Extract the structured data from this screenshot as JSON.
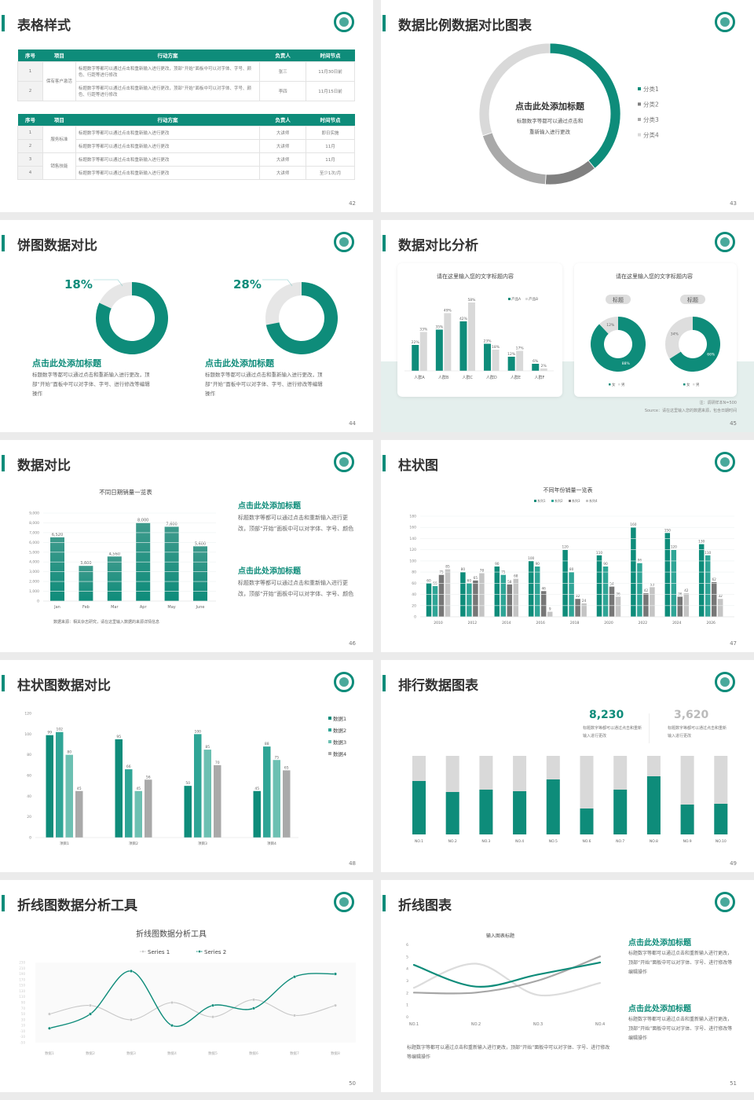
{
  "colors": {
    "accent": "#0e8c7a",
    "gray_dark": "#808080",
    "gray_mid": "#a9a9a9",
    "gray_light": "#d9d9d9"
  },
  "logo": {
    "icon": "school-seal-icon"
  },
  "s42": {
    "title": "表格样式",
    "page": "42",
    "tables": [
      {
        "header": [
          "序号",
          "项目",
          "行动方案",
          "负责人",
          "时间节点"
        ],
        "groups": [
          {
            "item": "保有客户激活",
            "rows": [
              {
                "no": "1",
                "plan": "标题数字等都可以通过点击和重新输入进行更改，顶部“开始”面板中可以对字体、字号、颜色、行距等进行修改",
                "owner": "张三",
                "time": "11月30日前"
              },
              {
                "no": "2",
                "plan": "标题数字等都可以通过点击和重新输入进行更改，顶部“开始”面板中可以对字体、字号、颜色、行距等进行修改",
                "owner": "李四",
                "time": "11月15日前"
              }
            ]
          }
        ]
      },
      {
        "header": [
          "序号",
          "项目",
          "行动方案",
          "负责人",
          "时间节点"
        ],
        "groups": [
          {
            "item": "服务标准",
            "rows": [
              {
                "no": "1",
                "plan": "标题数字等都可以通过点击和重新输入进行更改",
                "owner": "大讲师",
                "time": "即日实施"
              },
              {
                "no": "2",
                "plan": "标题数字等都可以通过点击和重新输入进行更改",
                "owner": "大讲师",
                "time": "11月"
              }
            ]
          },
          {
            "item": "销售技能",
            "rows": [
              {
                "no": "3",
                "plan": "标题数字等都可以通过点击和重新输入进行更改",
                "owner": "大讲师",
                "time": "11月"
              },
              {
                "no": "4",
                "plan": "标题数字等都可以通过点击和重新输入进行更改",
                "owner": "大讲师",
                "time": "至少1次/月"
              }
            ]
          }
        ]
      }
    ]
  },
  "s43": {
    "title": "数据比例数据对比图表",
    "page": "43",
    "center_title": "点击此处添加标题",
    "center_line1": "标题数字等都可以通过点击和",
    "center_line2": "重新输入进行更改"
  },
  "s44": {
    "title": "饼图数据对比",
    "page": "44",
    "items": [
      {
        "heading": "点击此处添加标题",
        "body": "标题数字等都可以通过点击和重新输入进行更改，顶部“开始”面板中可以对字体、字号、进行修改等编辑操作"
      },
      {
        "heading": "点击此处添加标题",
        "body": "标题数字等都可以通过点击和重新输入进行更改，顶部“开始”面板中可以对字体、字号、进行修改等编辑操作"
      }
    ]
  },
  "s45": {
    "title": "数据对比分析",
    "page": "45",
    "note": "注：调研样本N=500",
    "source": "Source：请在这里输入您的数据来源，包含日期时间"
  },
  "s46": {
    "title": "数据对比",
    "page": "46",
    "source": "数据来源：相关杂志研究，请在这里输入数据的来源详情信息",
    "items": [
      {
        "heading": "点击此处添加标题",
        "body": "标题数字等都可以通过点击和重新输入进行更改，顶部“开始”面板中可以对字体、字号、颜色"
      },
      {
        "heading": "点击此处添加标题",
        "body": "标题数字等都可以通过点击和重新输入进行更改，顶部“开始”面板中可以对字体、字号、颜色"
      }
    ]
  },
  "s47": {
    "title": "柱状图",
    "page": "47"
  },
  "s48": {
    "title": "柱状图数据对比",
    "page": "48"
  },
  "s49": {
    "title": "排行数据图表",
    "page": "49",
    "stats": [
      {
        "value": "8,230",
        "desc": "标题数字等都可以通过点击和重新输入进行更改"
      },
      {
        "value": "3,620",
        "desc": "标题数字等都可以通过点击和重新输入进行更改"
      }
    ]
  },
  "s50": {
    "title": "折线图数据分析工具",
    "page": "50"
  },
  "s51": {
    "title": "折线图表",
    "page": "51",
    "caption": "标题数字等都可以通过点击和重新输入进行更改，顶部“开始”面板中可以对字体、字号、进行修改等编辑操作",
    "items": [
      {
        "heading": "点击此处添加标题",
        "body": "标题数字等都可以通过点击和重新输入进行更改，顶部“开始”面板中可以对字体、字号、进行修改等编辑操作"
      },
      {
        "heading": "点击此处添加标题",
        "body": "标题数字等都可以通过点击和重新输入进行更改，顶部“开始”面板中可以对字体、字号、进行修改等编辑操作"
      }
    ]
  },
  "chart_data": [
    {
      "id": "s43",
      "type": "pie",
      "donut": true,
      "categories": [
        "分类1",
        "分类2",
        "分类3",
        "分类4"
      ],
      "values": [
        39,
        12,
        19,
        30
      ],
      "legend": "right"
    },
    {
      "id": "s44a",
      "type": "pie",
      "donut": true,
      "label": "18%",
      "values": [
        18,
        82
      ]
    },
    {
      "id": "s44b",
      "type": "pie",
      "donut": true,
      "label": "28%",
      "values": [
        28,
        72
      ]
    },
    {
      "id": "s45bar",
      "type": "bar",
      "title": "请在这里输入您的文字标题内容",
      "categories": [
        "人群A",
        "人群B",
        "人群C",
        "人群D",
        "人群E",
        "人群F"
      ],
      "series": [
        {
          "name": "产品A",
          "values": [
            22,
            35,
            42,
            23,
            12,
            6
          ],
          "labels": [
            "22%",
            "35%",
            "42%",
            "23%",
            "12%",
            "6%"
          ]
        },
        {
          "name": "产品B",
          "values": [
            33,
            49,
            58,
            18,
            17,
            2
          ],
          "labels": [
            "33%",
            "49%",
            "58%",
            "18%",
            "17%",
            "2%"
          ]
        }
      ],
      "legend": "top-right"
    },
    {
      "id": "s45pie",
      "type": "pie",
      "donut": true,
      "title": "请在这里输入您的文字标题内容",
      "charts": [
        {
          "tag": "标题",
          "categories": [
            "女",
            "男"
          ],
          "values": [
            88,
            12
          ],
          "labels": [
            "88%",
            "12%"
          ]
        },
        {
          "tag": "标题",
          "categories": [
            "女",
            "男"
          ],
          "values": [
            66,
            34
          ],
          "labels": [
            "66%",
            "34%"
          ]
        }
      ]
    },
    {
      "id": "s46",
      "type": "bar",
      "title": "不同日期销量一览表",
      "categories": [
        "Jan",
        "Feb",
        "Mar",
        "Apr",
        "May",
        "June"
      ],
      "series": [
        {
          "values": [
            6520,
            3600,
            4560,
            8000,
            7600,
            5600
          ],
          "labels": [
            "6,520",
            "3,600",
            "4,560",
            "8,000",
            "7,600",
            "5,600"
          ]
        }
      ],
      "ylim": [
        0,
        9000
      ],
      "yticks": [
        "9,000",
        "8,000",
        "7,000",
        "6,000",
        "5,000",
        "4,000",
        "3,000",
        "2,000",
        "1,000",
        "0"
      ],
      "grid": true
    },
    {
      "id": "s47",
      "type": "bar",
      "title": "不同年份销量一览表",
      "categories": [
        "2010",
        "2012",
        "2014",
        "2016",
        "2018",
        "2020",
        "2022",
        "2024",
        "2026"
      ],
      "series": [
        {
          "name": "系列1",
          "values": [
            60,
            80,
            90,
            100,
            120,
            110,
            160,
            150,
            130
          ]
        },
        {
          "name": "系列2",
          "values": [
            55,
            60,
            75,
            90,
            80,
            90,
            96,
            120,
            110
          ]
        },
        {
          "name": "系列3",
          "values": [
            75,
            65,
            58,
            46,
            32,
            54,
            42,
            36,
            62
          ]
        },
        {
          "name": "系列4",
          "values": [
            85,
            78,
            68,
            9,
            24,
            36,
            53,
            42,
            32
          ]
        }
      ],
      "ylim": [
        0,
        180
      ],
      "yticks": [
        "180",
        "160",
        "140",
        "120",
        "100",
        "80",
        "60",
        "40",
        "20",
        "0"
      ],
      "legend": "top",
      "grid": true
    },
    {
      "id": "s48",
      "type": "bar",
      "categories": [
        "项目1",
        "项目2",
        "项目3",
        "项目4"
      ],
      "series": [
        {
          "name": "数据1",
          "values": [
            99,
            95,
            50,
            45
          ]
        },
        {
          "name": "数据2",
          "values": [
            102,
            66,
            100,
            88
          ]
        },
        {
          "name": "数据3",
          "values": [
            80,
            45,
            85,
            75
          ]
        },
        {
          "name": "数据4",
          "values": [
            45,
            56,
            70,
            65
          ]
        }
      ],
      "ylim": [
        0,
        120
      ],
      "yticks": [
        "120",
        "100",
        "80",
        "60",
        "40",
        "20",
        "0"
      ],
      "legend": "right"
    },
    {
      "id": "s49",
      "type": "bar",
      "stacked": true,
      "categories": [
        "NO.1",
        "NO.2",
        "NO.3",
        "NO.4",
        "NO.5",
        "NO.6",
        "NO.7",
        "NO.8",
        "NO.9",
        "NO.10"
      ],
      "values": [
        0.68,
        0.54,
        0.57,
        0.55,
        0.7,
        0.33,
        0.57,
        0.74,
        0.38,
        0.39
      ]
    },
    {
      "id": "s50",
      "type": "line",
      "title": "折线图数据分析工具",
      "categories": [
        "数据1",
        "数据2",
        "数据3",
        "数据4",
        "数据5",
        "数据6",
        "数据7",
        "数据8"
      ],
      "series": [
        {
          "name": "Series 1",
          "values": [
            50,
            80,
            30,
            90,
            40,
            100,
            45,
            80
          ]
        },
        {
          "name": "Series 2",
          "values": [
            0,
            50,
            200,
            10,
            80,
            70,
            180,
            190
          ]
        }
      ],
      "ylim": [
        -50,
        230
      ],
      "yticks": [
        "230",
        "210",
        "190",
        "170",
        "150",
        "130",
        "110",
        "90",
        "70",
        "50",
        "30",
        "10",
        "-10",
        "-30",
        "-50"
      ],
      "legend": "top"
    },
    {
      "id": "s51",
      "type": "line",
      "title": "输入图表标题",
      "categories": [
        "NO.1",
        "NO.2",
        "NO.3",
        "NO.4"
      ],
      "series": [
        {
          "values": [
            4.3,
            2.5,
            3.5,
            4.5
          ]
        },
        {
          "values": [
            2.4,
            4.4,
            1.8,
            2.8
          ]
        },
        {
          "values": [
            2.0,
            2.0,
            3.0,
            5.0
          ]
        }
      ],
      "ylim": [
        0,
        6
      ],
      "yticks": [
        "6",
        "5",
        "4",
        "3",
        "2",
        "1",
        "0"
      ]
    }
  ]
}
